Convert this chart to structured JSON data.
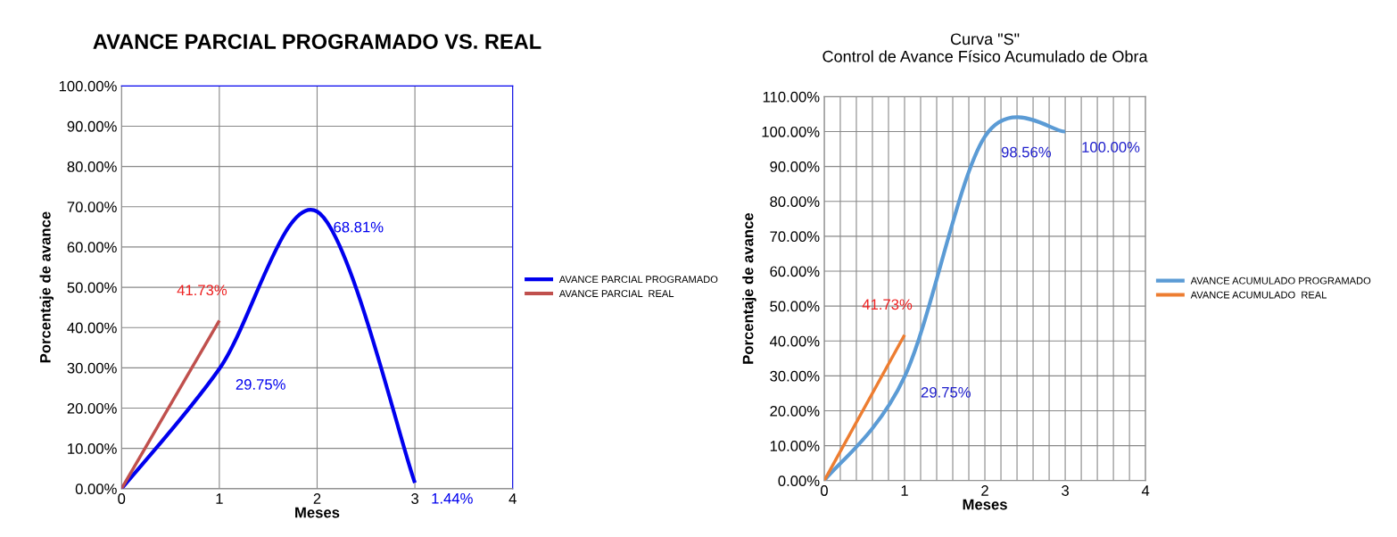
{
  "chart_data": [
    {
      "type": "line",
      "title": "AVANCE PARCIAL PROGRAMADO VS. REAL",
      "xlabel": "Meses",
      "ylabel": "Porcentaje de avance",
      "xlim": [
        0,
        4
      ],
      "xticks": [
        0,
        1,
        2,
        3,
        4
      ],
      "ylim": [
        0,
        100
      ],
      "yticks": [
        {
          "value": 0,
          "label": "0.00%"
        },
        {
          "value": 10,
          "label": "10.00%"
        },
        {
          "value": 20,
          "label": "20.00%"
        },
        {
          "value": 30,
          "label": "30.00%"
        },
        {
          "value": 40,
          "label": "40.00%"
        },
        {
          "value": 50,
          "label": "50.00%"
        },
        {
          "value": 60,
          "label": "60.00%"
        },
        {
          "value": 70,
          "label": "70.00%"
        },
        {
          "value": 80,
          "label": "80.00%"
        },
        {
          "value": 90,
          "label": "90.00%"
        },
        {
          "value": 100,
          "label": "100.00%"
        }
      ],
      "grid": true,
      "legend": "right",
      "marker": "none",
      "line_style": "solid",
      "series": [
        {
          "name": "AVANCE PARCIAL PROGRAMADO",
          "color": "#0000ee",
          "x": [
            0,
            1,
            2,
            3
          ],
          "values": [
            0,
            29.75,
            68.81,
            1.44
          ],
          "value_labels": [
            null,
            "29.75%",
            "68.81%",
            "1.44%"
          ]
        },
        {
          "name": "AVANCE PARCIAL  REAL",
          "color": "#c0504d",
          "x": [
            0,
            1
          ],
          "values": [
            0,
            41.73
          ],
          "value_labels": [
            null,
            "41.73%"
          ]
        }
      ]
    },
    {
      "type": "line",
      "title": "Curva \"S\"",
      "subtitle": "Control de Avance Físico Acumulado de Obra",
      "xlabel": "Meses",
      "ylabel": "Porcentaje de avance",
      "xlim": [
        0,
        4
      ],
      "xticks": [
        0,
        {
          "value": 0.2,
          "label": null
        },
        {
          "value": 0.4,
          "label": null
        },
        {
          "value": 0.6,
          "label": null
        },
        {
          "value": 0.8,
          "label": null
        },
        1,
        {
          "value": 1.2,
          "label": null
        },
        {
          "value": 1.4,
          "label": null
        },
        {
          "value": 1.6,
          "label": null
        },
        {
          "value": 1.8,
          "label": null
        },
        2,
        {
          "value": 2.2,
          "label": null
        },
        {
          "value": 2.4,
          "label": null
        },
        {
          "value": 2.6,
          "label": null
        },
        {
          "value": 2.8,
          "label": null
        },
        3,
        {
          "value": 3.2,
          "label": null
        },
        {
          "value": 3.4,
          "label": null
        },
        {
          "value": 3.6,
          "label": null
        },
        {
          "value": 3.8,
          "label": null
        },
        4
      ],
      "ylim": [
        0,
        110
      ],
      "yticks": [
        {
          "value": 0,
          "label": "0.00%"
        },
        {
          "value": 10,
          "label": "10.00%"
        },
        {
          "value": 20,
          "label": "20.00%"
        },
        {
          "value": 30,
          "label": "30.00%"
        },
        {
          "value": 40,
          "label": "40.00%"
        },
        {
          "value": 50,
          "label": "50.00%"
        },
        {
          "value": 60,
          "label": "60.00%"
        },
        {
          "value": 70,
          "label": "70.00%"
        },
        {
          "value": 80,
          "label": "80.00%"
        },
        {
          "value": 90,
          "label": "90.00%"
        },
        {
          "value": 100,
          "label": "100.00%"
        },
        {
          "value": 110,
          "label": "110.00%"
        }
      ],
      "grid": true,
      "legend": "right",
      "marker": "none",
      "line_style": "solid",
      "series": [
        {
          "name": "AVANCE ACUMULADO PROGRAMADO",
          "color": "#5b9bd5",
          "x": [
            0,
            1,
            2,
            3
          ],
          "values": [
            0,
            29.75,
            98.56,
            100
          ],
          "value_labels": [
            null,
            "29.75%",
            "98.56%",
            "100.00%"
          ]
        },
        {
          "name": "AVANCE ACUMULADO  REAL",
          "color": "#ed7d31",
          "x": [
            0,
            1
          ],
          "values": [
            0,
            41.73
          ],
          "value_labels": [
            null,
            "41.73%"
          ]
        }
      ]
    }
  ]
}
